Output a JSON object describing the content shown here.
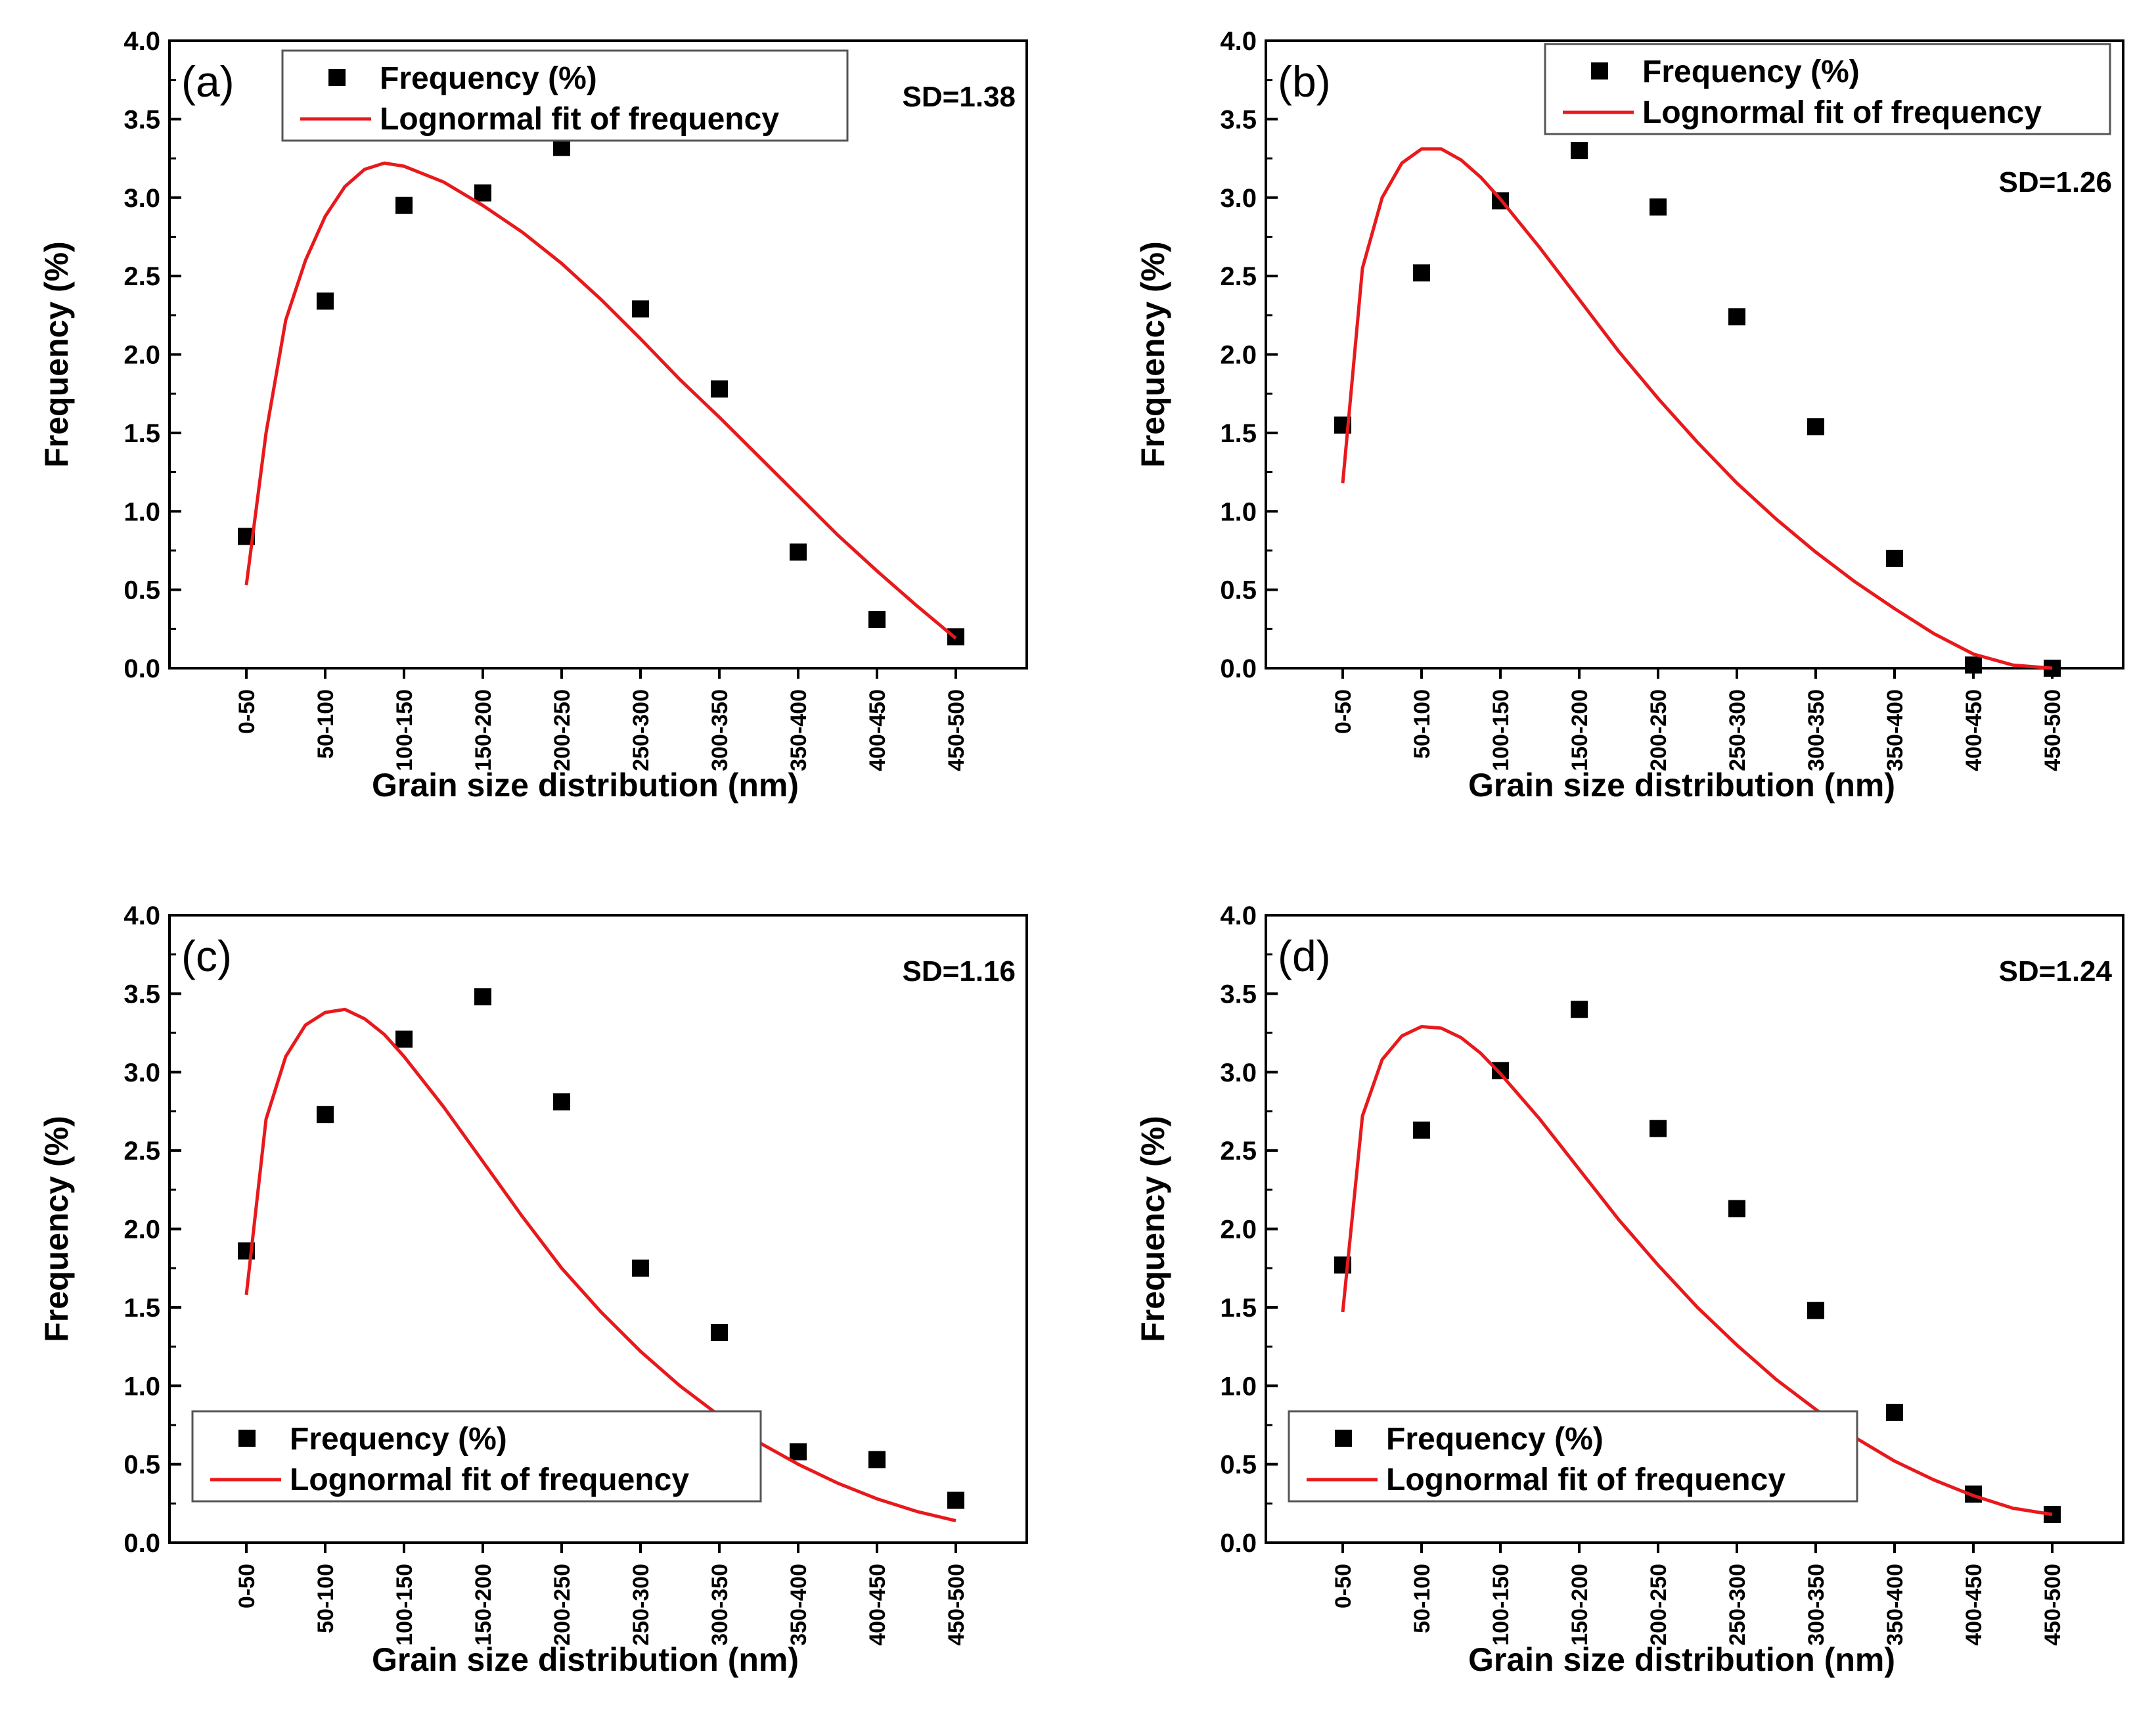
{
  "figure": {
    "legend_scatter_label": "Frequency (%)",
    "legend_line_label": "Lognormal fit of frequency"
  },
  "chart_data": [
    {
      "type": "scatter",
      "panel": "(a)",
      "annotation": "SD=1.38",
      "xlabel": "Grain size distribution (nm)",
      "ylabel": "Frequency (%)",
      "ylim": [
        0,
        4
      ],
      "yticks": [
        "0.0",
        "0.5",
        "1.0",
        "1.5",
        "2.0",
        "2.5",
        "3.0",
        "3.5",
        "4.0"
      ],
      "categories": [
        "0-50",
        "50-100",
        "100-150",
        "150-200",
        "200-250",
        "250-300",
        "300-350",
        "350-400",
        "400-450",
        "450-500"
      ],
      "legend_position": "top-left",
      "series": [
        {
          "name": "Frequency (%)",
          "kind": "scatter",
          "color": "#000000",
          "values": [
            0.84,
            2.34,
            2.95,
            3.03,
            3.32,
            2.29,
            1.78,
            0.74,
            0.31,
            0.2
          ]
        },
        {
          "name": "Lognormal fit of frequency",
          "kind": "line",
          "color": "#e8191c",
          "x": [
            0,
            0.25,
            0.5,
            0.75,
            1,
            1.25,
            1.5,
            1.75,
            2,
            2.5,
            3,
            3.5,
            4,
            4.5,
            5,
            5.5,
            6,
            6.5,
            7,
            7.5,
            8,
            8.5,
            9
          ],
          "values": [
            0.53,
            1.5,
            2.22,
            2.6,
            2.88,
            3.07,
            3.18,
            3.22,
            3.2,
            3.1,
            2.95,
            2.78,
            2.58,
            2.35,
            2.1,
            1.84,
            1.6,
            1.35,
            1.1,
            0.85,
            0.62,
            0.4,
            0.19
          ]
        }
      ]
    },
    {
      "type": "scatter",
      "panel": "(b)",
      "annotation": "SD=1.26",
      "xlabel": "Grain size distribution (nm)",
      "ylabel": "Frequency (%)",
      "ylim": [
        0,
        4
      ],
      "yticks": [
        "0.0",
        "0.5",
        "1.0",
        "1.5",
        "2.0",
        "2.5",
        "3.0",
        "3.5",
        "4.0"
      ],
      "categories": [
        "0-50",
        "50-100",
        "100-150",
        "150-200",
        "200-250",
        "250-300",
        "300-350",
        "350-400",
        "400-450",
        "450-500"
      ],
      "legend_position": "top-right",
      "series": [
        {
          "name": "Frequency (%)",
          "kind": "scatter",
          "color": "#000000",
          "values": [
            1.55,
            2.52,
            2.98,
            3.3,
            2.94,
            2.24,
            1.54,
            0.7,
            0.02,
            0.0
          ]
        },
        {
          "name": "Lognormal fit of frequency",
          "kind": "line",
          "color": "#e8191c",
          "x": [
            0,
            0.25,
            0.5,
            0.75,
            1,
            1.25,
            1.5,
            1.75,
            2,
            2.5,
            3,
            3.5,
            4,
            4.5,
            5,
            5.5,
            6,
            6.5,
            7,
            7.5,
            8,
            8.5,
            9
          ],
          "values": [
            1.18,
            2.55,
            3.0,
            3.22,
            3.31,
            3.31,
            3.24,
            3.13,
            2.99,
            2.68,
            2.35,
            2.02,
            1.72,
            1.44,
            1.18,
            0.95,
            0.74,
            0.55,
            0.38,
            0.22,
            0.09,
            0.02,
            0.0
          ]
        }
      ]
    },
    {
      "type": "scatter",
      "panel": "(c)",
      "annotation": "SD=1.16",
      "xlabel": "Grain size distribution (nm)",
      "ylabel": "Frequency (%)",
      "ylim": [
        0,
        4
      ],
      "yticks": [
        "0.0",
        "0.5",
        "1.0",
        "1.5",
        "2.0",
        "2.5",
        "3.0",
        "3.5",
        "4.0"
      ],
      "categories": [
        "0-50",
        "50-100",
        "100-150",
        "150-200",
        "200-250",
        "250-300",
        "300-350",
        "350-400",
        "400-450",
        "450-500"
      ],
      "legend_position": "bottom-left",
      "series": [
        {
          "name": "Frequency (%)",
          "kind": "scatter",
          "color": "#000000",
          "values": [
            1.86,
            2.73,
            3.21,
            3.48,
            2.81,
            1.75,
            1.34,
            0.58,
            0.53,
            0.27
          ]
        },
        {
          "name": "Lognormal fit of frequency",
          "kind": "line",
          "color": "#e8191c",
          "x": [
            0,
            0.25,
            0.5,
            0.75,
            1,
            1.25,
            1.5,
            1.75,
            2,
            2.5,
            3,
            3.5,
            4,
            4.5,
            5,
            5.5,
            6,
            6.5,
            7,
            7.5,
            8,
            8.5,
            9
          ],
          "values": [
            1.58,
            2.7,
            3.1,
            3.3,
            3.38,
            3.4,
            3.34,
            3.24,
            3.1,
            2.78,
            2.43,
            2.08,
            1.75,
            1.47,
            1.22,
            1.0,
            0.81,
            0.64,
            0.5,
            0.38,
            0.28,
            0.2,
            0.14
          ]
        }
      ]
    },
    {
      "type": "scatter",
      "panel": "(d)",
      "annotation": "SD=1.24",
      "xlabel": "Grain size distribution (nm)",
      "ylabel": "Frequency (%)",
      "ylim": [
        0,
        4
      ],
      "yticks": [
        "0.0",
        "0.5",
        "1.0",
        "1.5",
        "2.0",
        "2.5",
        "3.0",
        "3.5",
        "4.0"
      ],
      "categories": [
        "0-50",
        "50-100",
        "100-150",
        "150-200",
        "200-250",
        "250-300",
        "300-350",
        "350-400",
        "400-450",
        "450-500"
      ],
      "legend_position": "bottom-left",
      "series": [
        {
          "name": "Frequency (%)",
          "kind": "scatter",
          "color": "#000000",
          "values": [
            1.77,
            2.63,
            3.01,
            3.4,
            2.64,
            2.13,
            1.48,
            0.83,
            0.31,
            0.18
          ]
        },
        {
          "name": "Lognormal fit of frequency",
          "kind": "line",
          "color": "#e8191c",
          "x": [
            0,
            0.25,
            0.5,
            0.75,
            1,
            1.25,
            1.5,
            1.75,
            2,
            2.5,
            3,
            3.5,
            4,
            4.5,
            5,
            5.5,
            6,
            6.5,
            7,
            7.5,
            8,
            8.5,
            9
          ],
          "values": [
            1.47,
            2.72,
            3.08,
            3.23,
            3.29,
            3.28,
            3.22,
            3.12,
            2.99,
            2.7,
            2.38,
            2.06,
            1.77,
            1.5,
            1.26,
            1.04,
            0.85,
            0.67,
            0.52,
            0.4,
            0.3,
            0.22,
            0.18
          ]
        }
      ]
    }
  ]
}
